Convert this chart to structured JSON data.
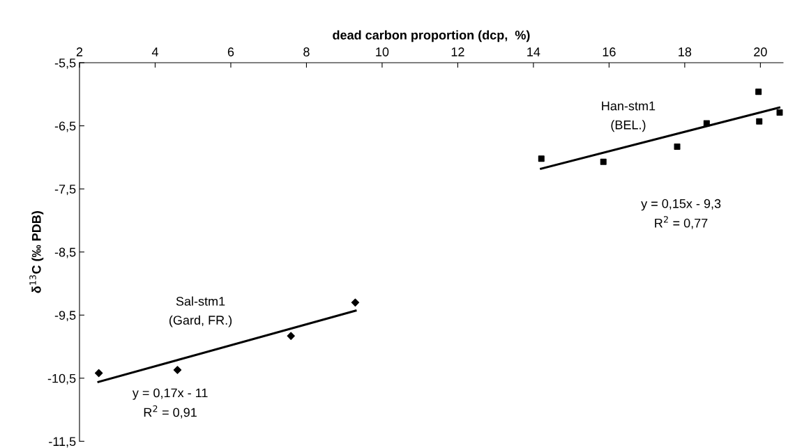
{
  "chart_data": {
    "type": "scatter",
    "xlabel": "dead carbon proportion (dcp,  %)",
    "ylabel": "δ$^{13}$C (‰ PDB)",
    "xlim": [
      2,
      20.6
    ],
    "xticks": [
      2,
      4,
      6,
      8,
      10,
      12,
      14,
      16,
      18,
      20
    ],
    "ylim": [
      -11.5,
      -5.5
    ],
    "yticks": [
      {
        "value": -5.5,
        "label": "-5,5"
      },
      {
        "value": -6.5,
        "label": "-6,5"
      },
      {
        "value": -7.5,
        "label": "-7,5"
      },
      {
        "value": -8.5,
        "label": "-8,5"
      },
      {
        "value": -9.5,
        "label": "-9,5"
      },
      {
        "value": -10.5,
        "label": "-10,5"
      },
      {
        "value": -11.5,
        "label": "-11,5"
      }
    ],
    "grid": false,
    "legend": false,
    "series": [
      {
        "marker": "diamond",
        "color": "#000000",
        "x": [
          2.51,
          4.59,
          7.59,
          9.29
        ],
        "values": [
          -10.42,
          -10.37,
          -9.83,
          -9.3
        ]
      },
      {
        "marker": "square",
        "color": "#000000",
        "x": [
          14.21,
          15.85,
          17.8,
          18.58,
          19.95,
          19.97,
          20.51
        ],
        "values": [
          -7.02,
          -7.07,
          -6.83,
          -6.46,
          -5.96,
          -6.43,
          -6.29
        ]
      },
      {
        "type": "line",
        "marker": "none",
        "line_style": "solid",
        "color": "#000000",
        "x": [
          2.5,
          9.3
        ],
        "values": [
          -10.56,
          -9.43
        ]
      },
      {
        "type": "line",
        "marker": "none",
        "line_style": "solid",
        "color": "#000000",
        "x": [
          14.2,
          20.5
        ],
        "values": [
          -7.18,
          -6.21
        ]
      }
    ],
    "annotations": [
      "Sal-stm1",
      "(Gard, FR.)",
      "y = 0,17x - 11",
      "R$^{2}$ = 0,91",
      "Han-stm1",
      "(BEL.)",
      "y = 0,15x - 9,3",
      "R$^{2}$ = 0,77"
    ]
  }
}
